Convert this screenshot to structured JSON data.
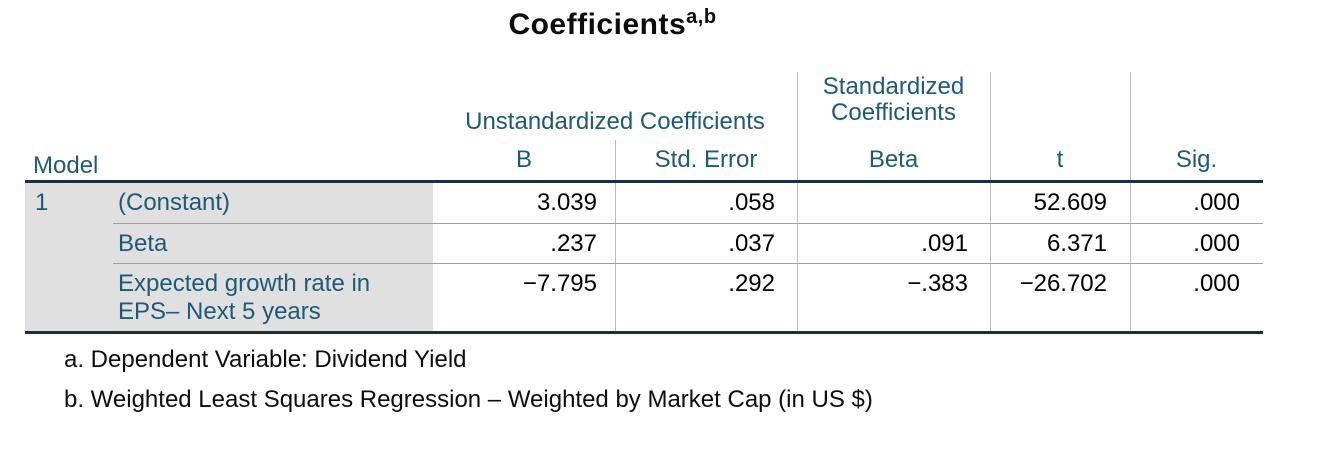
{
  "title": {
    "text": "Coefficients",
    "superscript": "a,b"
  },
  "colors": {
    "header_text": "#1e5a74",
    "thick_rule": "#16323e",
    "thin_rule": "#a0a0a0",
    "stub_background": "#e0e0e0",
    "value_text": "#000000"
  },
  "table": {
    "stub_header": "Model",
    "group_headers": {
      "unstandardized": "Unstandardized Coefficients",
      "standardized": "Standardized Coefficients"
    },
    "column_headers": {
      "b": "B",
      "std_error": "Std. Error",
      "beta": "Beta",
      "t": "t",
      "sig": "Sig."
    },
    "model_number": "1",
    "rows": [
      {
        "label": "(Constant)",
        "b": "3.039",
        "std_error": ".058",
        "beta": "",
        "t": "52.609",
        "sig": ".000"
      },
      {
        "label": "Beta",
        "b": ".237",
        "std_error": ".037",
        "beta": ".091",
        "t": "6.371",
        "sig": ".000"
      },
      {
        "label": "Expected growth rate in EPS– Next 5 years",
        "b": "−7.795",
        "std_error": ".292",
        "beta": "−.383",
        "t": "−26.702",
        "sig": ".000"
      }
    ]
  },
  "footnotes": {
    "a": "a. Dependent Variable: Dividend Yield",
    "b": "b. Weighted Least Squares Regression – Weighted by Market Cap (in US $)"
  }
}
